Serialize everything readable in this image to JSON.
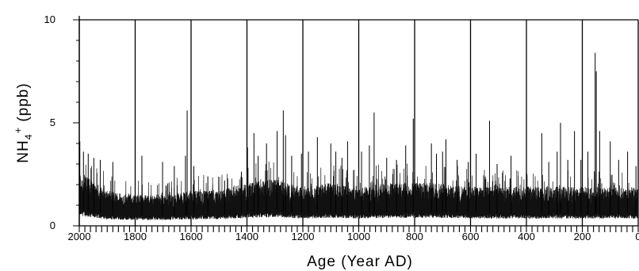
{
  "chart_data": {
    "type": "line",
    "xlabel": "Age (Year AD)",
    "ylabel": {
      "base": "NH",
      "subscript": "4",
      "superscript": "+",
      "unit": " (ppb)"
    },
    "xlim": [
      2000,
      0
    ],
    "ylim": [
      0,
      10
    ],
    "x_ticks": [
      2000,
      1800,
      1600,
      1400,
      1200,
      1000,
      800,
      600,
      400,
      200,
      0
    ],
    "x_tick_labels": [
      "2000",
      "1800",
      "1600",
      "1400",
      "1200",
      "1000",
      "800",
      "600",
      "400",
      "200",
      "0"
    ],
    "x_minor_tick_step": 20,
    "y_ticks": [
      0,
      5,
      10
    ],
    "y_tick_labels": [
      "0",
      "5",
      "10"
    ],
    "grid": "vertical lines at major x ticks and horizontal line at y=10",
    "series": [
      {
        "style": "black high-frequency trace",
        "baseline_by_century": [
          [
            2000,
            1.4
          ],
          [
            1900,
            0.9
          ],
          [
            1800,
            0.8
          ],
          [
            1700,
            0.8
          ],
          [
            1600,
            0.9
          ],
          [
            1500,
            0.9
          ],
          [
            1400,
            1.1
          ],
          [
            1300,
            1.2
          ],
          [
            1200,
            1.0
          ],
          [
            1100,
            1.1
          ],
          [
            1000,
            1.0
          ],
          [
            900,
            1.1
          ],
          [
            800,
            1.1
          ],
          [
            700,
            1.1
          ],
          [
            600,
            1.0
          ],
          [
            500,
            1.0
          ],
          [
            400,
            1.0
          ],
          [
            300,
            1.0
          ],
          [
            200,
            1.0
          ],
          [
            100,
            1.0
          ],
          [
            0,
            1.0
          ]
        ],
        "peaks": [
          [
            1998,
            4.1
          ],
          [
            1985,
            3.6
          ],
          [
            1968,
            3.5
          ],
          [
            1948,
            3.3
          ],
          [
            1925,
            3.2
          ],
          [
            1880,
            3.1
          ],
          [
            1776,
            3.4
          ],
          [
            1702,
            3.1
          ],
          [
            1660,
            2.9
          ],
          [
            1620,
            3.4
          ],
          [
            1614,
            5.6
          ],
          [
            1590,
            2.9
          ],
          [
            1540,
            2.4
          ],
          [
            1480,
            2.2
          ],
          [
            1420,
            2.6
          ],
          [
            1398,
            3.8
          ],
          [
            1375,
            4.5
          ],
          [
            1360,
            3.4
          ],
          [
            1330,
            4.0
          ],
          [
            1292,
            4.6
          ],
          [
            1270,
            5.6
          ],
          [
            1262,
            4.4
          ],
          [
            1240,
            3.4
          ],
          [
            1205,
            3.5
          ],
          [
            1180,
            3.6
          ],
          [
            1148,
            4.3
          ],
          [
            1100,
            4.0
          ],
          [
            1082,
            3.6
          ],
          [
            1060,
            3.3
          ],
          [
            1040,
            4.1
          ],
          [
            990,
            3.6
          ],
          [
            962,
            3.9
          ],
          [
            945,
            5.5
          ],
          [
            900,
            3.3
          ],
          [
            865,
            3.2
          ],
          [
            832,
            3.9
          ],
          [
            805,
            5.2
          ],
          [
            740,
            4.0
          ],
          [
            722,
            3.5
          ],
          [
            700,
            3.6
          ],
          [
            688,
            4.2
          ],
          [
            648,
            3.2
          ],
          [
            608,
            3.1
          ],
          [
            580,
            3.5
          ],
          [
            532,
            5.1
          ],
          [
            505,
            3.0
          ],
          [
            455,
            3.4
          ],
          [
            400,
            3.0
          ],
          [
            345,
            4.5
          ],
          [
            320,
            3.1
          ],
          [
            290,
            3.6
          ],
          [
            278,
            5.0
          ],
          [
            252,
            3.2
          ],
          [
            228,
            4.6
          ],
          [
            205,
            3.2
          ],
          [
            180,
            3.6
          ],
          [
            154,
            8.4
          ],
          [
            150,
            7.5
          ],
          [
            138,
            4.6
          ],
          [
            100,
            4.1
          ],
          [
            70,
            3.2
          ],
          [
            38,
            3.6
          ],
          [
            8,
            2.9
          ]
        ]
      }
    ]
  }
}
